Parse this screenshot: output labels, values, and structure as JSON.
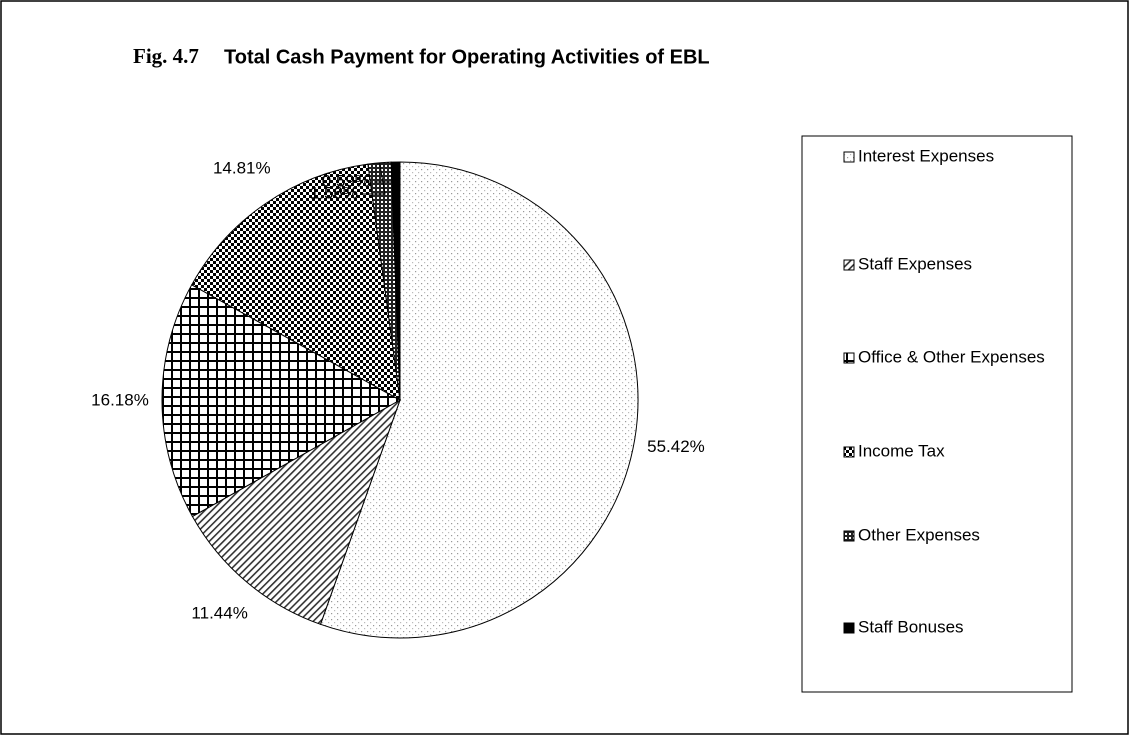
{
  "chart_data": {
    "type": "pie",
    "figure_label": "Fig. 4.7",
    "title": "Total Cash Payment  for Operating Activities of EBL",
    "categories": [
      "Interest Expenses",
      "Staff Expenses",
      "Office & Other Expenses",
      "Income Tax",
      "Other Expenses",
      "Staff Bonuses"
    ],
    "values": [
      55.42,
      11.44,
      16.18,
      14.81,
      1.56,
      0.59
    ],
    "value_labels": [
      "55.42%",
      "11.44%",
      "16.18%",
      "14.81%",
      "1.56%",
      "0.59%"
    ],
    "legend": "right"
  }
}
